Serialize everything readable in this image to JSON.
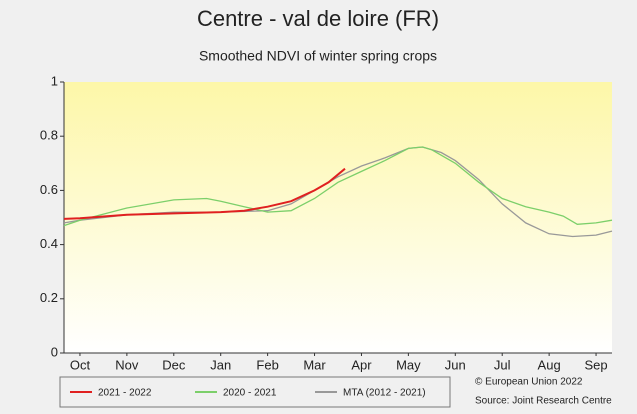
{
  "chart_data": {
    "type": "line",
    "title": "Centre - val de loire (FR)",
    "subtitle": "Smoothed NDVI of winter spring crops",
    "annotations": [
      "© European Union 2022",
      "Source: Joint Research Centre"
    ],
    "xlim": [
      -0.34,
      11.34
    ],
    "xticks": [
      {
        "value": 0,
        "label": "Oct"
      },
      {
        "value": 1,
        "label": "Nov"
      },
      {
        "value": 2,
        "label": "Dec"
      },
      {
        "value": 3,
        "label": "Jan"
      },
      {
        "value": 4,
        "label": "Feb"
      },
      {
        "value": 5,
        "label": "Mar"
      },
      {
        "value": 6,
        "label": "Apr"
      },
      {
        "value": 7,
        "label": "May"
      },
      {
        "value": 8,
        "label": "Jun"
      },
      {
        "value": 9,
        "label": "Jul"
      },
      {
        "value": 10,
        "label": "Aug"
      },
      {
        "value": 11,
        "label": "Sep"
      }
    ],
    "ylim": [
      0,
      1
    ],
    "yticks": [
      0,
      0.2,
      0.4,
      0.6,
      0.8,
      1
    ],
    "grid": false,
    "series": [
      {
        "name": "2021 - 2022",
        "color": "#e02020",
        "x": [
          -0.34,
          0,
          1,
          2,
          3,
          3.5,
          4,
          4.5,
          5,
          5.3,
          5.65
        ],
        "values": [
          0.495,
          0.497,
          0.51,
          0.515,
          0.52,
          0.525,
          0.54,
          0.56,
          0.6,
          0.63,
          0.68
        ]
      },
      {
        "name": "2020 - 2021",
        "color": "#7ccf6a",
        "x": [
          -0.34,
          0,
          1,
          2,
          2.7,
          3,
          3.5,
          4,
          4.5,
          5,
          5.5,
          6,
          6.5,
          7,
          7.3,
          7.5,
          8,
          8.5,
          9,
          9.5,
          10,
          10.3,
          10.6,
          11,
          11.34
        ],
        "values": [
          0.47,
          0.49,
          0.535,
          0.565,
          0.57,
          0.56,
          0.54,
          0.52,
          0.525,
          0.57,
          0.63,
          0.67,
          0.71,
          0.755,
          0.76,
          0.75,
          0.7,
          0.63,
          0.57,
          0.54,
          0.52,
          0.505,
          0.475,
          0.48,
          0.49
        ]
      },
      {
        "name": "MTA (2012 - 2021)",
        "color": "#999999",
        "x": [
          -0.34,
          0,
          1,
          2,
          3,
          4,
          4.5,
          5,
          5.5,
          6,
          6.5,
          7,
          7.3,
          7.7,
          8,
          8.5,
          9,
          9.5,
          10,
          10.5,
          11,
          11.34
        ],
        "values": [
          0.48,
          0.49,
          0.51,
          0.52,
          0.52,
          0.525,
          0.55,
          0.6,
          0.65,
          0.69,
          0.72,
          0.755,
          0.76,
          0.74,
          0.71,
          0.64,
          0.55,
          0.48,
          0.44,
          0.43,
          0.435,
          0.45
        ]
      }
    ]
  }
}
